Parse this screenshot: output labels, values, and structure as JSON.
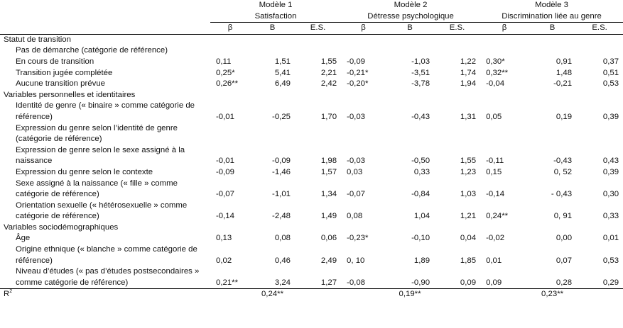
{
  "models": [
    {
      "title": "Modèle 1",
      "subtitle": "Satisfaction"
    },
    {
      "title": "Modèle 2",
      "subtitle": "Détresse psychologique"
    },
    {
      "title": "Modèle 3",
      "subtitle": "Discrimination liée au genre"
    }
  ],
  "col_headers": [
    "β",
    "B",
    "E.S."
  ],
  "sections": [
    {
      "title": "Statut de transition",
      "rows": [
        {
          "label": "Pas de démarche (catégorie de référence)",
          "values": [
            "",
            "",
            "",
            "",
            "",
            "",
            "",
            "",
            ""
          ]
        },
        {
          "label": "En cours de transition",
          "values": [
            "0,11",
            "1,51",
            "1,55",
            "-0,09",
            "-1,03",
            "1,22",
            "0,30*",
            "0,91",
            "0,37"
          ]
        },
        {
          "label": "Transition jugée complétée",
          "values": [
            "0,25*",
            "5,41",
            "2,21",
            "-0,21*",
            "-3,51",
            "1,74",
            "0,32**",
            "1,48",
            "0,51"
          ]
        },
        {
          "label": "Aucune transition prévue",
          "values": [
            "0,26**",
            "6,49",
            "2,42",
            "-0,20*",
            "-3,78",
            "1,94",
            "-0,04",
            "-0,21",
            "0,53"
          ]
        }
      ]
    },
    {
      "title": "Variables personnelles et identitaires",
      "rows": [
        {
          "label": "Identité de genre (« binaire » comme catégorie de référence)",
          "values": [
            "-0,01",
            "-0,25",
            "1,70",
            "-0,03",
            "-0,43",
            "1,31",
            "0,05",
            "0,19",
            "0,39"
          ]
        },
        {
          "label": "Expression du genre selon l’identité de genre (catégorie de référence)",
          "values": [
            "",
            "",
            "",
            "",
            "",
            "",
            "",
            "",
            ""
          ]
        },
        {
          "label": "Expression de genre selon le sexe assigné à la naissance",
          "values": [
            "-0,01",
            "-0,09",
            "1,98",
            "-0,03",
            "-0,50",
            "1,55",
            "-0,11",
            "-0,43",
            "0,43"
          ]
        },
        {
          "label": "Expression du genre selon le contexte",
          "values": [
            "-0,09",
            "-1,46",
            "1,57",
            "0,03",
            "0,33",
            "1,23",
            "0,15",
            "0, 52",
            "0,39"
          ]
        },
        {
          "label": "Sexe assigné à la naissance (« fille » comme catégorie de référence)",
          "values": [
            "-0,07",
            "-1,01",
            "1,34",
            "-0,07",
            "-0,84",
            "1,03",
            "-0,14",
            "- 0,43",
            "0,30"
          ]
        },
        {
          "label": "Orientation sexuelle (« hétérosexuelle » comme catégorie de référence)",
          "values": [
            "-0,14",
            "-2,48",
            "1,49",
            "0,08",
            "1,04",
            "1,21",
            "0,24**",
            "0, 91",
            "0,33"
          ]
        }
      ]
    },
    {
      "title": "Variables sociodémographiques",
      "rows": [
        {
          "label": "Âge",
          "values": [
            "0,13",
            "0,08",
            "0,06",
            "-0,23*",
            "-0,10",
            "0,04",
            "-0,02",
            "0,00",
            "0,01"
          ]
        },
        {
          "label": "Origine ethnique (« blanche » comme catégorie de référence)",
          "values": [
            "0,02",
            "0,46",
            "2,49",
            "0, 10",
            "1,89",
            "1,85",
            "0,01",
            "0,07",
            "0,53"
          ]
        },
        {
          "label": "Niveau d’études (« pas d’études postsecondaires » comme catégorie de référence)",
          "values": [
            "0,21**",
            "3,24",
            "1,27",
            "-0,08",
            "-0,90",
            "0,09",
            "0,09",
            "0,28",
            "0,29"
          ]
        }
      ]
    }
  ],
  "r2": {
    "label": "R",
    "sup": "2",
    "values": [
      "0,24**",
      "0,19**",
      "0,23**"
    ]
  }
}
